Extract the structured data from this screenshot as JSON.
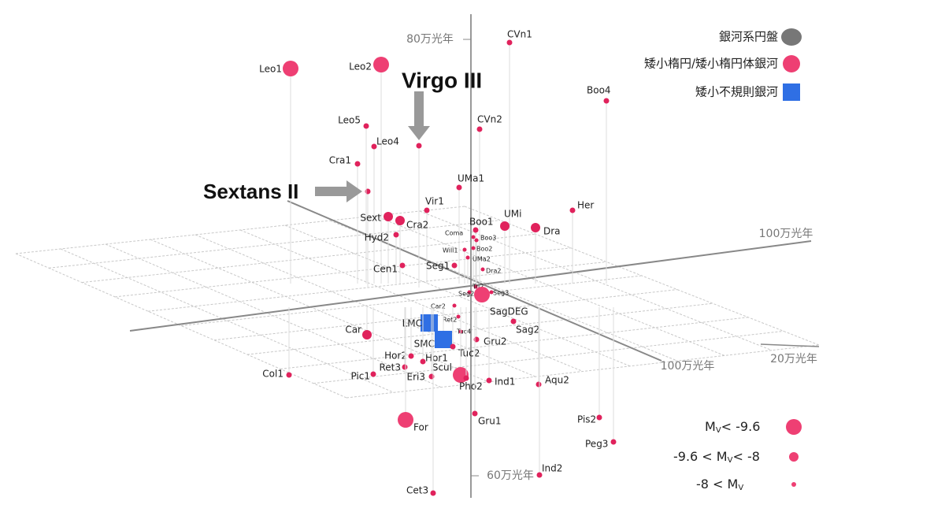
{
  "legend": {
    "types": [
      "銀河系円盤",
      "矮小楕円/矮小楕円体銀河",
      "矮小不規則銀河"
    ],
    "magnitudes": [
      {
        "sym": "M",
        "sub": "V",
        "post": "< -9.6"
      },
      {
        "pre": "-9.6 < ",
        "sym": "M",
        "sub": "V",
        "post": "< -8"
      },
      {
        "pre": "-8 < ",
        "sym": "M",
        "sub": "V"
      }
    ]
  },
  "scale_labels": [
    "80万光年",
    "60万光年",
    "100万光年",
    "100万光年",
    "20万光年"
  ],
  "annotations": [
    "Virgo III",
    "Sextans II"
  ],
  "galaxies": [
    "Leo1",
    "Leo2",
    "Leo5",
    "Leo4",
    "Cra1",
    "CVn1",
    "CVn2",
    "Boo4",
    "UMa1",
    "Vir1",
    "Sext",
    "Cra2",
    "Hyd2",
    "UMi",
    "Boo1",
    "Her",
    "Dra",
    "Coma",
    "Boo3",
    "Will1",
    "Boo2",
    "UMa2",
    "Cen1",
    "Seg1",
    "Dra2",
    "Tri2",
    "Seg3",
    "Seg2",
    "SagDEG",
    "Car2",
    "Ret2",
    "LMC",
    "SMC",
    "Tuc4",
    "Gru2",
    "Sag2",
    "Tuc2",
    "Car",
    "Hor2",
    "Hor1",
    "Ret3",
    "Eri3",
    "Pic1",
    "Col1",
    "Scul",
    "Pho2",
    "Ind1",
    "Aqu2",
    "Gru1",
    "For",
    "Pis2",
    "Peg3",
    "Ind2",
    "Cet3"
  ]
}
